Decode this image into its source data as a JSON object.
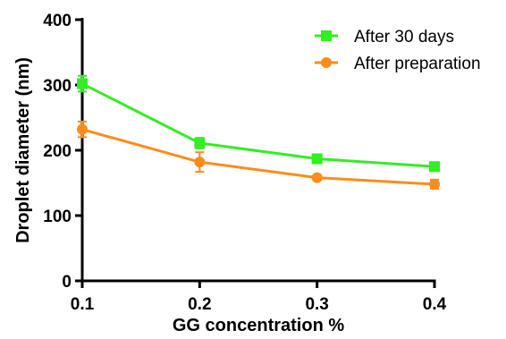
{
  "chart_data": {
    "type": "line",
    "title": "",
    "xlabel": "GG concentration %",
    "ylabel": "Droplet diameter (nm)",
    "x": [
      0.1,
      0.2,
      0.3,
      0.4
    ],
    "x_tick_labels": [
      "0.1",
      "0.2",
      "0.3",
      "0.4"
    ],
    "xlim": [
      0.1,
      0.4
    ],
    "ylim": [
      0,
      400
    ],
    "y_ticks": [
      0,
      100,
      200,
      300,
      400
    ],
    "y_tick_labels": [
      "0",
      "100",
      "200",
      "300",
      "400"
    ],
    "grid": false,
    "legend_position": "top-right",
    "series": [
      {
        "name": "After 30 days",
        "color": "#33ee22",
        "marker": "square",
        "values": [
          302,
          211,
          187,
          175
        ],
        "errors": [
          12,
          8,
          5,
          4
        ]
      },
      {
        "name": "After preparation",
        "color": "#ff8c1a",
        "marker": "circle",
        "values": [
          232,
          182,
          158,
          148
        ],
        "errors": [
          12,
          15,
          4,
          7
        ]
      }
    ]
  }
}
